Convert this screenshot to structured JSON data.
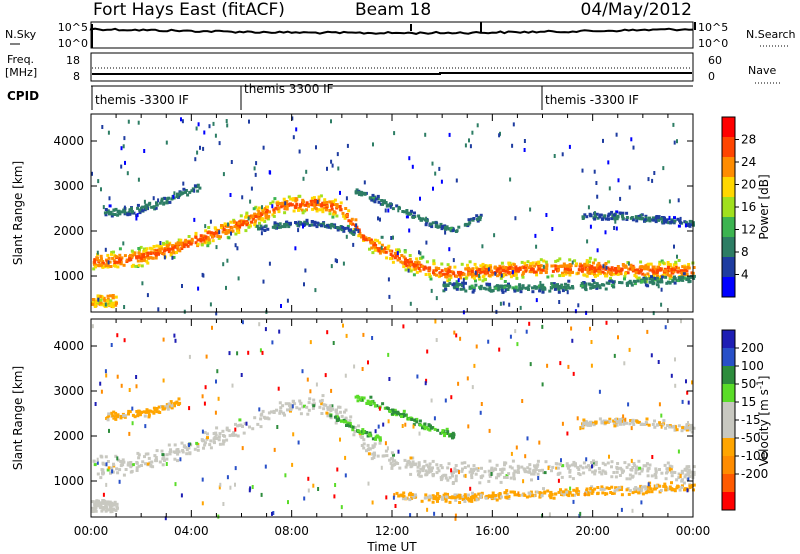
{
  "header": {
    "station": "Fort Hays East (fitACF)",
    "beam": "Beam 18",
    "date": "04/May/2012"
  },
  "noise_panel": {
    "left_label": "N.Sky",
    "left_ticks": [
      "10^5",
      "10^0"
    ],
    "right_ticks": [
      "10^5",
      "10^0"
    ],
    "right_label": "N.Search"
  },
  "freq_panel": {
    "left_label": "Freq.",
    "left_unit": "[MHz]",
    "left_ticks": [
      "18",
      "8"
    ],
    "right_ticks": [
      "60",
      "0"
    ],
    "right_label": "Nave"
  },
  "cpid_panel": {
    "label": "CPID",
    "segments": [
      {
        "start_hour": 0,
        "text": "themis -3300 IF"
      },
      {
        "start_hour": 6,
        "text": "themis 3300 IF"
      },
      {
        "start_hour": 18,
        "text": "themis -3300 IF"
      }
    ]
  },
  "colors": {
    "power_scale": [
      "#0000ff",
      "#1e3ca0",
      "#2d7d64",
      "#3cb450",
      "#a0e01e",
      "#ffd700",
      "#ff8c00",
      "#ff4500",
      "#ff0000"
    ],
    "velocity_scale": [
      "#1e1eb4",
      "#2850c8",
      "#2d8c3c",
      "#5adc28",
      "#c8c8c0",
      "#c8c8c0",
      "#ffa500",
      "#ff8c00",
      "#ff5a00",
      "#ff0000"
    ],
    "ground_scatter": "#c8c8c0"
  },
  "chart_data": [
    {
      "type": "heatmap",
      "parameter": "power",
      "xlabel": "",
      "ylabel": "Slant Range [km]",
      "xlim": [
        0,
        24
      ],
      "ylim": [
        200,
        4600
      ],
      "y_ticks": [
        1000,
        2000,
        3000,
        4000
      ],
      "colorbar": {
        "label": "Power [dB]",
        "ticks": [
          4,
          8,
          12,
          16,
          20,
          24,
          28
        ],
        "range": [
          0,
          32
        ]
      },
      "features": [
        {
          "type": "band",
          "hours": [
            0,
            1.5,
            3,
            4.5,
            6,
            7.5,
            9,
            10,
            11,
            12.5,
            14,
            16,
            18,
            20,
            22,
            24
          ],
          "range_km": [
            1350,
            1400,
            1600,
            1900,
            2200,
            2600,
            2650,
            2500,
            1800,
            1350,
            1100,
            1150,
            1200,
            1200,
            1150,
            1150
          ],
          "half_width_km": 140,
          "peak_power_db": 26
        },
        {
          "type": "band",
          "hours": [
            0.5,
            1.5,
            2.5,
            3.5,
            4.3
          ],
          "range_km": [
            2450,
            2480,
            2600,
            2850,
            3000
          ],
          "half_width_km": 80,
          "peak_power_db": 9
        },
        {
          "type": "band",
          "hours": [
            6.5,
            7.5,
            8.5,
            9.5,
            10.5
          ],
          "range_km": [
            2100,
            2150,
            2200,
            2150,
            2000
          ],
          "half_width_km": 50,
          "peak_power_db": 8
        },
        {
          "type": "band",
          "hours": [
            10.5,
            11.5,
            12.5,
            13.5,
            14.5,
            15.5
          ],
          "range_km": [
            2900,
            2700,
            2450,
            2200,
            2050,
            2350
          ],
          "half_width_km": 50,
          "peak_power_db": 9
        },
        {
          "type": "band",
          "hours": [
            19.5,
            21,
            22.5,
            24
          ],
          "range_km": [
            2350,
            2350,
            2300,
            2200
          ],
          "half_width_km": 60,
          "peak_power_db": 8
        },
        {
          "type": "band",
          "hours": [
            14,
            16,
            18,
            20,
            22,
            24
          ],
          "range_km": [
            800,
            760,
            780,
            820,
            900,
            1000
          ],
          "half_width_km": 70,
          "peak_power_db": 10
        },
        {
          "type": "blob",
          "hours": [
            0.0,
            1.0
          ],
          "range_km": [
            350,
            600
          ],
          "peak_power_db": 24
        }
      ]
    },
    {
      "type": "heatmap",
      "parameter": "velocity",
      "xlabel": "Time UT",
      "ylabel": "Slant Range [km]",
      "xlim": [
        0,
        24
      ],
      "ylim": [
        200,
        4600
      ],
      "x_ticks": [
        "00:00",
        "04:00",
        "08:00",
        "12:00",
        "16:00",
        "20:00",
        "00:00"
      ],
      "y_ticks": [
        1000,
        2000,
        3000,
        4000
      ],
      "colorbar": {
        "label": "Velocity [m s^-1]",
        "ticks": [
          200,
          100,
          50,
          15,
          -15,
          -50,
          -100,
          -200
        ]
      },
      "features": [
        {
          "type": "ground_scatter_band",
          "hours": [
            0,
            1.5,
            3,
            4.5,
            6,
            7.5,
            9,
            10,
            11,
            12.5,
            14,
            16,
            18,
            20,
            22,
            24
          ],
          "range_km": [
            1350,
            1400,
            1600,
            1900,
            2200,
            2650,
            2700,
            2500,
            1800,
            1350,
            1200,
            1250,
            1300,
            1300,
            1250,
            1250
          ],
          "half_width_km": 150
        },
        {
          "type": "band",
          "hours": [
            10.5,
            11.5,
            12.5,
            13.5,
            14.5
          ],
          "range_km": [
            2900,
            2700,
            2450,
            2200,
            2050
          ],
          "half_width_km": 60,
          "velocity_ms": 50
        },
        {
          "type": "band",
          "hours": [
            9.5,
            10.5,
            11.5
          ],
          "range_km": [
            2500,
            2200,
            1950
          ],
          "half_width_km": 40,
          "velocity_ms": 50
        },
        {
          "type": "band",
          "hours": [
            0.5,
            1.5,
            2.5,
            3.5
          ],
          "range_km": [
            2450,
            2500,
            2600,
            2800
          ],
          "half_width_km": 70,
          "velocity_ms": -60
        },
        {
          "type": "band",
          "hours": [
            19.5,
            21,
            22.5,
            24
          ],
          "range_km": [
            2300,
            2350,
            2300,
            2200
          ],
          "half_width_km": 60,
          "velocity_ms": -40
        },
        {
          "type": "band",
          "hours": [
            12,
            14,
            16,
            18,
            20,
            22,
            24
          ],
          "range_km": [
            700,
            650,
            700,
            750,
            800,
            850,
            900
          ],
          "half_width_km": 70,
          "velocity_ms": -60
        },
        {
          "type": "ground_scatter_blob",
          "hours": [
            0.0,
            1.0
          ],
          "range_km": [
            350,
            600
          ]
        }
      ]
    }
  ]
}
